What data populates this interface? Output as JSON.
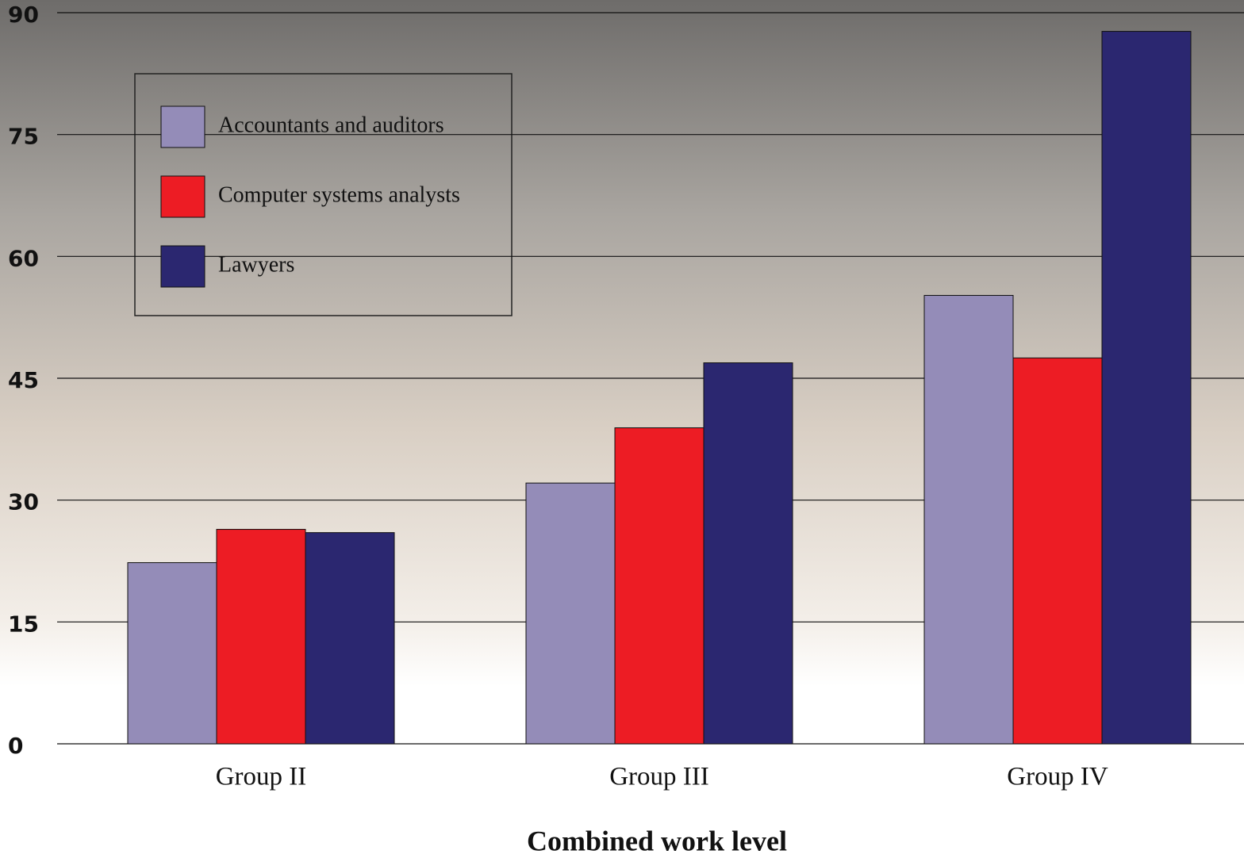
{
  "chart_data": {
    "type": "bar",
    "xlabel": "Combined work level",
    "categories": [
      "Group II",
      "Group III",
      "Group IV"
    ],
    "series": [
      {
        "name": "Accountants and auditors",
        "color": "#948cb8",
        "values": [
          22.3,
          32.1,
          55.2
        ]
      },
      {
        "name": "Computer systems analysts",
        "color": "#ed1c24",
        "values": [
          26.4,
          38.9,
          47.5
        ]
      },
      {
        "name": "Lawyers",
        "color": "#2b2770",
        "values": [
          26.0,
          46.9,
          87.7
        ]
      }
    ],
    "ylim": [
      0,
      90
    ],
    "yticks": [
      0,
      15,
      30,
      45,
      60,
      75,
      90
    ],
    "grid": true,
    "legend": "upper left"
  }
}
